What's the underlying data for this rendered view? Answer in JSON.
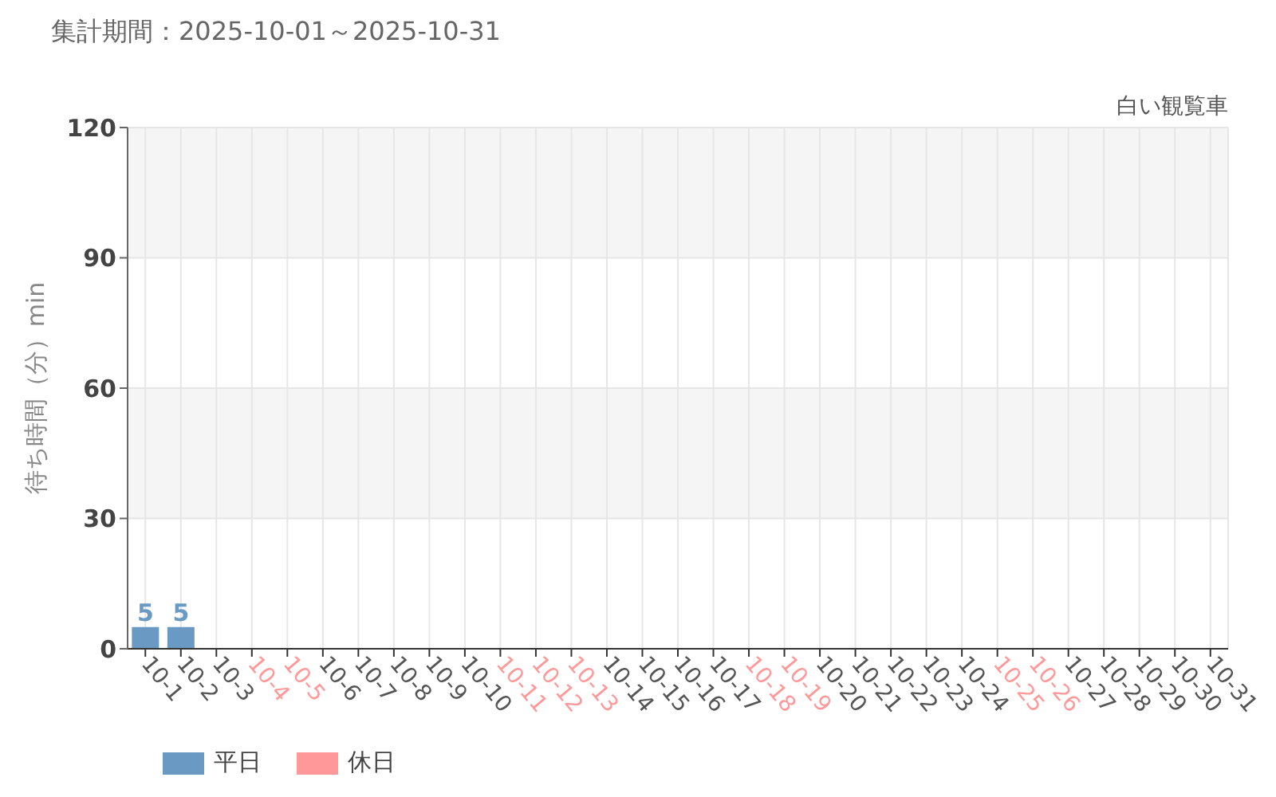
{
  "chart_data": {
    "type": "bar",
    "title": "集計期間：2025-10-01～2025-10-31",
    "subtitle": "白い観覧車",
    "ylabel": "待ち時間（分）min",
    "categories": [
      "10-1",
      "10-2",
      "10-3",
      "10-4",
      "10-5",
      "10-6",
      "10-7",
      "10-8",
      "10-9",
      "10-10",
      "10-11",
      "10-12",
      "10-13",
      "10-14",
      "10-15",
      "10-16",
      "10-17",
      "10-18",
      "10-19",
      "10-20",
      "10-21",
      "10-22",
      "10-23",
      "10-24",
      "10-25",
      "10-26",
      "10-27",
      "10-28",
      "10-29",
      "10-30",
      "10-31"
    ],
    "series": [
      {
        "name": "平日",
        "color": "#6a9ac4",
        "x": [
          "10-1",
          "10-2",
          "10-3",
          "10-6",
          "10-7",
          "10-8",
          "10-9",
          "10-10",
          "10-14",
          "10-15",
          "10-16",
          "10-17",
          "10-20",
          "10-21",
          "10-22",
          "10-23",
          "10-24",
          "10-27",
          "10-28",
          "10-29",
          "10-30",
          "10-31"
        ],
        "values": [
          5,
          5,
          null,
          null,
          null,
          null,
          null,
          null,
          null,
          null,
          null,
          null,
          null,
          null,
          null,
          null,
          null,
          null,
          null,
          null,
          null,
          null
        ]
      },
      {
        "name": "休日",
        "color": "#ff9999",
        "x": [
          "10-4",
          "10-5",
          "10-11",
          "10-12",
          "10-13",
          "10-18",
          "10-19",
          "10-25",
          "10-26"
        ],
        "values": [
          null,
          null,
          null,
          null,
          null,
          null,
          null,
          null,
          null
        ]
      }
    ],
    "ylim": [
      0,
      120
    ],
    "yticks": [
      0,
      30,
      60,
      90,
      120
    ],
    "grid": true,
    "legend": "bottom left",
    "data_labels": true
  }
}
